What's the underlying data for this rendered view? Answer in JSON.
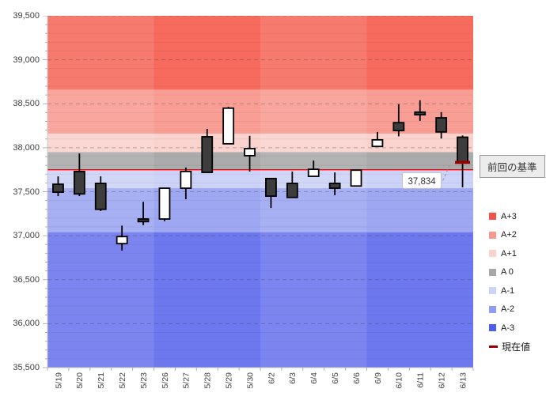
{
  "chart_data": {
    "type": "candlestick",
    "y_axis": {
      "min": 35500,
      "max": 39500,
      "major_step": 500,
      "minor_step": 100,
      "labels": [
        "39,500",
        "39,000",
        "38,500",
        "38,000",
        "37,500",
        "37,000",
        "36,500",
        "36,000",
        "35,500"
      ]
    },
    "x_axis": {
      "labels": [
        "5/19",
        "5/20",
        "5/21",
        "5/22",
        "5/23",
        "5/26",
        "5/27",
        "5/28",
        "5/29",
        "5/30",
        "6/2",
        "6/3",
        "6/4",
        "6/5",
        "6/6",
        "6/9",
        "6/10",
        "6/11",
        "6/12",
        "6/13"
      ]
    },
    "zones": [
      {
        "label": "A+3",
        "from": 38660,
        "to": 39500,
        "band_color": "#f76b5e",
        "legend_color": "#f0564a"
      },
      {
        "label": "A+2",
        "from": 38160,
        "to": 38660,
        "band_color": "#f99e94",
        "legend_color": "#f59a90"
      },
      {
        "label": "A+1",
        "from": 37950,
        "to": 38160,
        "band_color": "#fbd3ce",
        "legend_color": "#fbd2cd"
      },
      {
        "label": "A 0",
        "from": 37750,
        "to": 37950,
        "band_color": "#ababab",
        "legend_color": "#a8a8a8"
      },
      {
        "label": "A-1",
        "from": 37540,
        "to": 37750,
        "band_color": "#cdd3f8",
        "legend_color": "#ccd3f9"
      },
      {
        "label": "A-2",
        "from": 37040,
        "to": 37540,
        "band_color": "#9ea8f2",
        "legend_color": "#8f9df3"
      },
      {
        "label": "A-3",
        "from": 35500,
        "to": 37040,
        "band_color": "#6e78ee",
        "legend_color": "#4d5ee9"
      }
    ],
    "weeks_light": [
      0,
      2
    ],
    "days_per_week": 5,
    "light_week_overlay": "rgba(255,255,255,0.10)",
    "baseline": {
      "label": "前回の基準",
      "value": 37750,
      "color": "#ff0000"
    },
    "current": {
      "label": "現在値",
      "value": 37834,
      "annotation": "37,834",
      "color": "#9b0000"
    },
    "candle_colors": {
      "up_fill": "#ffffff",
      "down_fill": "#3d3d3d",
      "stroke": "#000000"
    },
    "candles": [
      {
        "date": "5/19",
        "open": 37585,
        "high": 37675,
        "low": 37450,
        "close": 37495
      },
      {
        "date": "5/20",
        "open": 37730,
        "high": 37935,
        "low": 37450,
        "close": 37475
      },
      {
        "date": "5/21",
        "open": 37595,
        "high": 37675,
        "low": 37280,
        "close": 37300
      },
      {
        "date": "5/22",
        "open": 36910,
        "high": 37115,
        "low": 36830,
        "close": 36990
      },
      {
        "date": "5/23",
        "open": 37190,
        "high": 37385,
        "low": 37120,
        "close": 37160
      },
      {
        "date": "5/26",
        "open": 37190,
        "high": 37540,
        "low": 37165,
        "close": 37540
      },
      {
        "date": "5/27",
        "open": 37540,
        "high": 37775,
        "low": 37415,
        "close": 37730
      },
      {
        "date": "5/28",
        "open": 38125,
        "high": 38215,
        "low": 37720,
        "close": 37720
      },
      {
        "date": "5/29",
        "open": 38045,
        "high": 38465,
        "low": 38045,
        "close": 38450
      },
      {
        "date": "5/30",
        "open": 37910,
        "high": 38135,
        "low": 37730,
        "close": 37990
      },
      {
        "date": "6/2",
        "open": 37650,
        "high": 37650,
        "low": 37315,
        "close": 37450
      },
      {
        "date": "6/3",
        "open": 37595,
        "high": 37730,
        "low": 37435,
        "close": 37435
      },
      {
        "date": "6/4",
        "open": 37675,
        "high": 37855,
        "low": 37675,
        "close": 37755
      },
      {
        "date": "6/5",
        "open": 37595,
        "high": 37720,
        "low": 37460,
        "close": 37540
      },
      {
        "date": "6/6",
        "open": 37565,
        "high": 37745,
        "low": 37565,
        "close": 37745
      },
      {
        "date": "6/9",
        "open": 38015,
        "high": 38180,
        "low": 38015,
        "close": 38090
      },
      {
        "date": "6/10",
        "open": 38285,
        "high": 38495,
        "low": 38130,
        "close": 38195
      },
      {
        "date": "6/11",
        "open": 38405,
        "high": 38540,
        "low": 38305,
        "close": 38375
      },
      {
        "date": "6/12",
        "open": 38340,
        "high": 38405,
        "low": 38105,
        "close": 38180
      },
      {
        "date": "6/13",
        "open": 38120,
        "high": 38140,
        "low": 37550,
        "close": 37834
      }
    ]
  }
}
